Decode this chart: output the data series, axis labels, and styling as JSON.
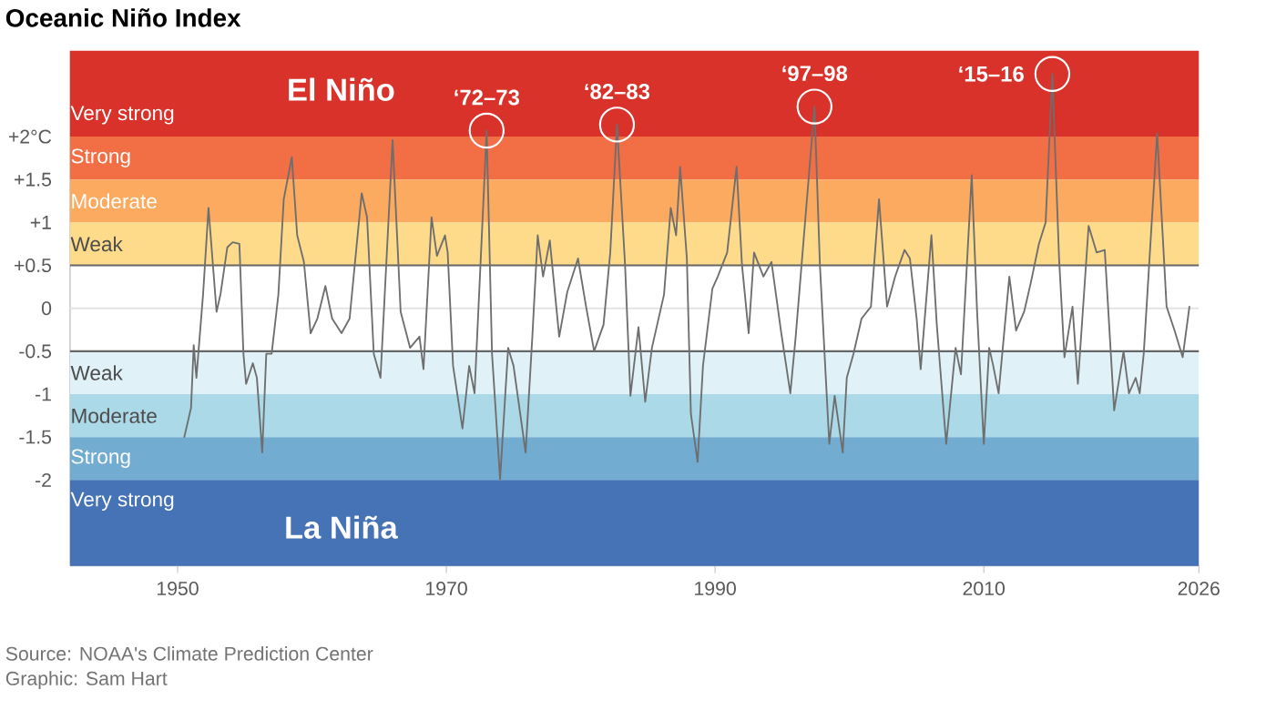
{
  "chart_data": {
    "type": "line",
    "title": "Oceanic Niño Index",
    "x": [
      1950.5,
      1951.0,
      1951.2,
      1951.4,
      1951.9,
      1952.3,
      1952.9,
      1953.2,
      1953.7,
      1954.1,
      1954.6,
      1954.9,
      1955.1,
      1955.6,
      1955.9,
      1956.3,
      1956.6,
      1957.0,
      1957.5,
      1957.9,
      1958.5,
      1958.9,
      1959.4,
      1959.9,
      1960.4,
      1961.0,
      1961.5,
      1962.2,
      1962.8,
      1963.7,
      1964.1,
      1964.6,
      1965.1,
      1966.0,
      1966.6,
      1967.3,
      1968.0,
      1968.3,
      1968.9,
      1969.3,
      1969.9,
      1970.1,
      1970.5,
      1971.2,
      1971.7,
      1972.1,
      1973.0,
      1973.4,
      1974.0,
      1974.6,
      1975.0,
      1975.9,
      1976.4,
      1976.8,
      1977.2,
      1977.7,
      1978.4,
      1979.0,
      1979.8,
      1980.4,
      1981.0,
      1981.7,
      1982.2,
      1982.7,
      1983.3,
      1983.7,
      1984.3,
      1984.8,
      1985.3,
      1986.2,
      1986.7,
      1987.1,
      1987.4,
      1987.9,
      1988.2,
      1988.7,
      1989.1,
      1989.8,
      1990.2,
      1990.9,
      1991.6,
      1992.0,
      1992.5,
      1992.9,
      1993.6,
      1994.2,
      1994.9,
      1995.6,
      1996.0,
      1997.4,
      1997.8,
      1998.5,
      1998.9,
      1999.5,
      1999.8,
      2000.3,
      2000.9,
      2001.6,
      2002.2,
      2002.8,
      2003.4,
      2004.1,
      2004.5,
      2005.0,
      2005.3,
      2006.1,
      2006.5,
      2007.2,
      2007.9,
      2008.3,
      2009.1,
      2009.5,
      2010.0,
      2010.4,
      2010.7,
      2011.1,
      2011.9,
      2012.4,
      2013.0,
      2013.5,
      2014.1,
      2014.6,
      2015.1,
      2015.6,
      2016.0,
      2016.6,
      2017.0,
      2017.8,
      2018.4,
      2019.0,
      2019.7,
      2020.4,
      2020.8,
      2021.3,
      2021.6,
      2021.9,
      2022.9,
      2023.6,
      2024.2,
      2024.8,
      2025.3
    ],
    "series": [
      {
        "color": "#6e6e6e",
        "values": [
          -1.5,
          -1.16,
          -0.43,
          -0.81,
          0.17,
          1.17,
          -0.04,
          0.17,
          0.71,
          0.77,
          0.75,
          -0.53,
          -0.88,
          -0.64,
          -0.81,
          -1.68,
          -0.53,
          -0.53,
          0.16,
          1.27,
          1.76,
          0.85,
          0.54,
          -0.29,
          -0.12,
          0.26,
          -0.12,
          -0.29,
          -0.12,
          1.34,
          1.06,
          -0.53,
          -0.81,
          1.96,
          -0.04,
          -0.46,
          -0.33,
          -0.71,
          1.06,
          0.61,
          0.85,
          0.65,
          -0.67,
          -1.4,
          -0.67,
          -0.99,
          2.07,
          -0.53,
          -1.99,
          -0.46,
          -0.67,
          -1.68,
          -0.33,
          0.85,
          0.37,
          0.79,
          -0.33,
          0.19,
          0.58,
          0.02,
          -0.5,
          -0.19,
          0.65,
          2.14,
          0.51,
          -1.02,
          -0.22,
          -1.09,
          -0.46,
          0.16,
          1.17,
          0.85,
          1.65,
          0.58,
          -1.23,
          -1.79,
          -0.67,
          0.23,
          0.37,
          0.65,
          1.65,
          0.51,
          -0.29,
          0.65,
          0.37,
          0.54,
          -0.26,
          -0.99,
          -0.33,
          2.35,
          0.51,
          -1.58,
          -1.02,
          -1.68,
          -0.81,
          -0.53,
          -0.12,
          0.02,
          1.27,
          0.02,
          0.37,
          0.68,
          0.58,
          -0.12,
          -0.71,
          0.85,
          -0.19,
          -1.58,
          -0.46,
          -0.77,
          1.55,
          -0.04,
          -1.58,
          -0.46,
          -0.67,
          -0.99,
          0.37,
          -0.26,
          -0.04,
          0.3,
          0.75,
          1.0,
          2.73,
          0.58,
          -0.57,
          0.02,
          -0.88,
          0.96,
          0.65,
          0.68,
          -1.19,
          -0.5,
          -0.99,
          -0.81,
          -0.99,
          -0.53,
          2.04,
          0.02,
          -0.26,
          -0.57,
          0.02
        ]
      }
    ],
    "xlim": [
      1942,
      2026
    ],
    "xticks": [
      1950,
      1970,
      1990,
      2010,
      2026
    ],
    "ylim": [
      -3,
      3
    ],
    "yticks": [
      {
        "value": 2,
        "label": "+2°C"
      },
      {
        "value": 1.5,
        "label": "+1.5"
      },
      {
        "value": 1,
        "label": "+1"
      },
      {
        "value": 0.5,
        "label": "+0.5"
      },
      0,
      {
        "value": -0.5,
        "label": "-0.5"
      },
      {
        "value": -1,
        "label": "-1"
      },
      {
        "value": -1.5,
        "label": "-1.5"
      },
      {
        "value": -2,
        "label": "-2"
      }
    ],
    "bands": [
      {
        "axis": "y",
        "from": 2,
        "to": 3,
        "label": "Very strong",
        "color": "#d8322a"
      },
      {
        "axis": "y",
        "from": 1.5,
        "to": 2,
        "label": "Strong",
        "color": "#f26e45"
      },
      {
        "axis": "y",
        "from": 1,
        "to": 1.5,
        "label": "Moderate",
        "color": "#fbaa60"
      },
      {
        "axis": "y",
        "from": 0.5,
        "to": 1,
        "label": "Weak",
        "color": "#fedb8b"
      },
      {
        "axis": "y",
        "from": -1,
        "to": -0.5,
        "label": "Weak",
        "color": "#e0f2f8"
      },
      {
        "axis": "y",
        "from": -1.5,
        "to": -1,
        "label": "Moderate",
        "color": "#acd9e7"
      },
      {
        "axis": "y",
        "from": -2,
        "to": -1.5,
        "label": "Strong",
        "color": "#73acd1"
      },
      {
        "axis": "y",
        "from": -3,
        "to": -2,
        "label": "Very strong",
        "color": "#4573b6"
      }
    ],
    "ref_lines": [
      {
        "axis": "y",
        "value": 0.5,
        "color": "#666666"
      },
      {
        "axis": "y",
        "value": 0,
        "color": "#e3e3e3"
      },
      {
        "axis": "y",
        "value": -0.5,
        "color": "#666666"
      }
    ],
    "annotations": [
      "El Niño",
      "La Niña",
      {
        "text": "‘72–73",
        "x": 1973.0,
        "y": 2.07
      },
      {
        "text": "‘82–83",
        "x": 1982.7,
        "y": 2.14
      },
      {
        "text": "‘97–98",
        "x": 1997.4,
        "y": 2.35
      },
      {
        "text": "‘15–16",
        "x": 2015.1,
        "y": 2.73
      },
      "Source: NOAA's Climate Prediction Center",
      "Graphic: Sam Hart"
    ]
  }
}
